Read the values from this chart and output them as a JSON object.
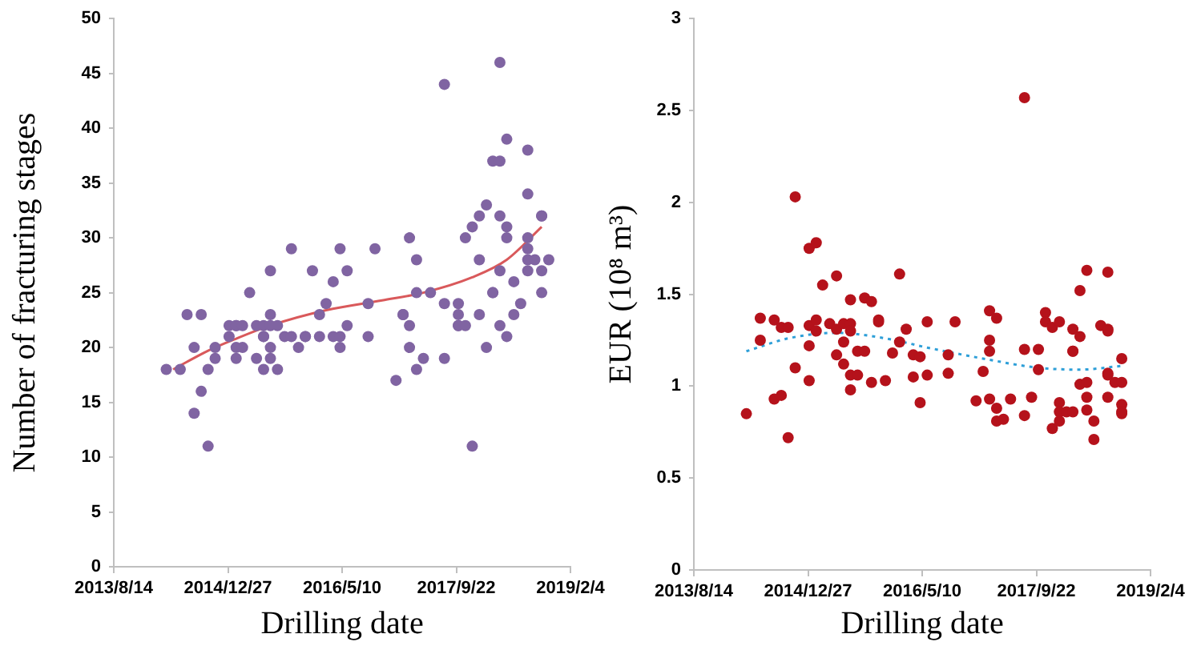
{
  "chart_data": [
    {
      "type": "scatter",
      "xlabel": "Drilling date",
      "ylabel": "Number of fracturing stages",
      "xlim": [
        "2013-08-14",
        "2019-02-04"
      ],
      "xticks": [
        {
          "value": "2013-08-14",
          "label": "2013/8/14"
        },
        {
          "value": "2014-12-27",
          "label": "2014/12/27"
        },
        {
          "value": "2016-05-10",
          "label": "2016/5/10"
        },
        {
          "value": "2017-09-22",
          "label": "2017/9/22"
        },
        {
          "value": "2019-02-04",
          "label": "2019/2/4"
        }
      ],
      "ylim": [
        0,
        50
      ],
      "yticks": [
        0,
        5,
        10,
        15,
        20,
        25,
        30,
        35,
        40,
        45,
        50
      ],
      "grid": false,
      "legend": false,
      "marker": "circle",
      "series": [
        {
          "type": "scatter",
          "color": "#8064a2",
          "x": [
            "2014-04",
            "2014-06",
            "2014-07",
            "2014-08",
            "2014-08",
            "2014-09",
            "2014-09",
            "2014-10",
            "2014-10",
            "2014-11",
            "2014-11",
            "2015-01",
            "2015-01",
            "2015-02",
            "2015-02",
            "2015-02",
            "2015-02",
            "2015-03",
            "2015-03",
            "2015-04",
            "2015-05",
            "2015-05",
            "2015-06",
            "2015-06",
            "2015-06",
            "2015-06",
            "2015-07",
            "2015-07",
            "2015-07",
            "2015-07",
            "2015-07",
            "2015-08",
            "2015-08",
            "2015-09",
            "2015-10",
            "2015-10",
            "2015-11",
            "2015-12",
            "2015-12",
            "2016-01",
            "2016-02",
            "2016-02",
            "2016-03",
            "2016-04",
            "2016-04",
            "2016-05",
            "2016-05",
            "2016-05",
            "2016-06",
            "2016-06",
            "2016-09",
            "2016-09",
            "2016-10",
            "2017-01",
            "2017-02",
            "2017-02",
            "2017-03",
            "2017-03",
            "2017-03",
            "2017-04",
            "2017-04",
            "2017-04",
            "2017-05",
            "2017-06",
            "2017-08",
            "2017-08",
            "2017-08",
            "2017-10",
            "2017-10",
            "2017-10",
            "2017-10",
            "2017-11",
            "2017-11",
            "2017-12",
            "2017-12",
            "2018-01",
            "2018-01",
            "2018-01",
            "2018-02",
            "2018-02",
            "2018-03",
            "2018-03",
            "2018-03",
            "2018-04",
            "2018-04",
            "2018-04",
            "2018-04",
            "2018-04",
            "2018-05",
            "2018-05",
            "2018-05",
            "2018-05",
            "2018-06",
            "2018-06",
            "2018-07",
            "2018-08",
            "2018-08",
            "2018-08",
            "2018-08",
            "2018-08",
            "2018-08",
            "2018-09",
            "2018-10",
            "2018-10",
            "2018-10",
            "2018-10",
            "2018-11"
          ],
          "values": [
            18,
            18,
            23,
            14,
            20,
            16,
            23,
            18,
            11,
            19,
            20,
            22,
            21,
            22,
            19,
            20,
            22,
            22,
            20,
            25,
            19,
            22,
            21,
            18,
            22,
            21,
            27,
            19,
            20,
            23,
            22,
            22,
            18,
            21,
            29,
            21,
            20,
            21,
            21,
            27,
            21,
            23,
            24,
            21,
            26,
            21,
            29,
            20,
            27,
            22,
            24,
            21,
            29,
            17,
            23,
            23,
            22,
            30,
            20,
            28,
            25,
            18,
            19,
            25,
            24,
            19,
            44,
            23,
            22,
            24,
            22,
            22,
            30,
            11,
            31,
            28,
            32,
            23,
            33,
            20,
            25,
            37,
            25,
            22,
            32,
            46,
            37,
            27,
            39,
            31,
            30,
            21,
            26,
            23,
            24,
            29,
            28,
            38,
            34,
            30,
            27,
            28,
            32,
            25,
            27,
            32,
            28
          ]
        },
        {
          "type": "line",
          "color": "#d9595b",
          "line_style": "solid",
          "marker": "none",
          "x": [
            "2014-05",
            "2014-10",
            "2015-02",
            "2015-07",
            "2016-03",
            "2016-11",
            "2017-05",
            "2017-12",
            "2018-05",
            "2018-10"
          ],
          "values": [
            18,
            19.7,
            20.8,
            22,
            23.4,
            24.3,
            25,
            26.4,
            28,
            31
          ]
        }
      ]
    },
    {
      "type": "scatter",
      "xlabel": "Drilling date",
      "ylabel": "EUR (10⁸ m³)",
      "xlim": [
        "2013-08-14",
        "2019-02-04"
      ],
      "xticks": [
        {
          "value": "2013-08-14",
          "label": "2013/8/14"
        },
        {
          "value": "2014-12-27",
          "label": "2014/12/27"
        },
        {
          "value": "2016-05-10",
          "label": "2016/5/10"
        },
        {
          "value": "2017-09-22",
          "label": "2017/9/22"
        },
        {
          "value": "2019-02-04",
          "label": "2019/2/4"
        }
      ],
      "ylim": [
        0,
        3
      ],
      "yticks": [
        0,
        0.5,
        1,
        1.5,
        2,
        2.5,
        3
      ],
      "grid": false,
      "legend": false,
      "marker": "circle",
      "series": [
        {
          "type": "scatter",
          "color": "#b5121b",
          "x": [
            "2014-04",
            "2014-06",
            "2014-06",
            "2014-08",
            "2014-08",
            "2014-09",
            "2014-09",
            "2014-10",
            "2014-10",
            "2014-11",
            "2014-11",
            "2015-01",
            "2015-01",
            "2015-01",
            "2015-01",
            "2015-02",
            "2015-02",
            "2015-02",
            "2015-03",
            "2015-04",
            "2015-05",
            "2015-05",
            "2015-05",
            "2015-06",
            "2015-06",
            "2015-06",
            "2015-07",
            "2015-07",
            "2015-07",
            "2015-07",
            "2015-07",
            "2015-08",
            "2015-08",
            "2015-09",
            "2015-09",
            "2015-10",
            "2015-10",
            "2015-11",
            "2015-11",
            "2015-12",
            "2016-01",
            "2016-02",
            "2016-02",
            "2016-03",
            "2016-04",
            "2016-04",
            "2016-05",
            "2016-05",
            "2016-06",
            "2016-06",
            "2016-09",
            "2016-09",
            "2016-10",
            "2017-01",
            "2017-02",
            "2017-03",
            "2017-03",
            "2017-03",
            "2017-03",
            "2017-04",
            "2017-04",
            "2017-04",
            "2017-05",
            "2017-06",
            "2017-08",
            "2017-08",
            "2017-08",
            "2017-09",
            "2017-10",
            "2017-10",
            "2017-11",
            "2017-11",
            "2017-12",
            "2017-12",
            "2018-01",
            "2018-01",
            "2018-01",
            "2018-01",
            "2018-02",
            "2018-03",
            "2018-03",
            "2018-03",
            "2018-03",
            "2018-04",
            "2018-04",
            "2018-04",
            "2018-05",
            "2018-05",
            "2018-05",
            "2018-05",
            "2018-06",
            "2018-06",
            "2018-07",
            "2018-08",
            "2018-08",
            "2018-08",
            "2018-08",
            "2018-08",
            "2018-08",
            "2018-09",
            "2018-10",
            "2018-10",
            "2018-10",
            "2018-10",
            "2018-10"
          ],
          "values": [
            0.85,
            1.37,
            1.25,
            0.93,
            1.36,
            0.95,
            1.32,
            1.32,
            0.72,
            1.1,
            2.03,
            1.33,
            1.03,
            1.22,
            1.75,
            1.78,
            1.3,
            1.36,
            1.55,
            1.34,
            1.17,
            1.6,
            1.31,
            1.24,
            1.34,
            1.12,
            1.34,
            0.98,
            1.47,
            1.3,
            1.06,
            1.19,
            1.06,
            1.19,
            1.48,
            1.02,
            1.46,
            1.35,
            1.36,
            1.03,
            1.18,
            1.61,
            1.24,
            1.31,
            1.17,
            1.05,
            0.91,
            1.16,
            1.35,
            1.06,
            1.07,
            1.17,
            1.35,
            0.92,
            1.08,
            1.19,
            1.25,
            0.93,
            1.41,
            0.81,
            0.88,
            1.37,
            0.82,
            0.93,
            1.2,
            0.84,
            2.57,
            0.94,
            1.2,
            1.09,
            1.4,
            1.35,
            0.77,
            1.32,
            1.35,
            0.81,
            0.91,
            0.86,
            0.86,
            1.19,
            1.19,
            0.86,
            1.31,
            1.01,
            1.27,
            1.52,
            1.63,
            0.94,
            0.87,
            1.02,
            0.71,
            0.81,
            1.33,
            1.06,
            1.31,
            1.07,
            0.94,
            1.3,
            1.62,
            1.02,
            0.9,
            0.86,
            1.02,
            0.85,
            1.15
          ]
        },
        {
          "type": "line",
          "color": "#2e9fd8",
          "line_style": "dotted",
          "marker": "none",
          "x": [
            "2014-04",
            "2014-10",
            "2015-05",
            "2015-12",
            "2016-06",
            "2017-02",
            "2017-10",
            "2018-04",
            "2018-10"
          ],
          "values": [
            1.19,
            1.26,
            1.29,
            1.26,
            1.21,
            1.15,
            1.1,
            1.09,
            1.11
          ]
        }
      ]
    }
  ]
}
